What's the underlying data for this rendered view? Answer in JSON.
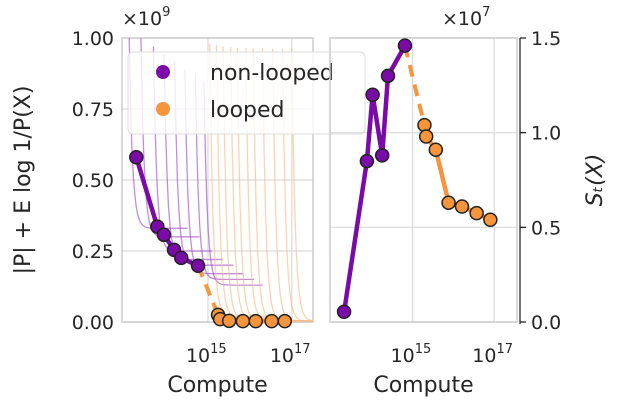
{
  "chart_data": [
    {
      "type": "line",
      "xlabel": "Compute",
      "ylabel": "|P| + E log 1/P(X)",
      "x_scale": "log",
      "xlim": [
        8900000000000.0,
        3.2e+17
      ],
      "ylim": [
        0,
        1.0
      ],
      "y_multiplier": "×10^9",
      "x_ticks": [
        "10^15",
        "10^17"
      ],
      "y_ticks": [
        "0.00",
        "0.25",
        "0.50",
        "0.75",
        "1.00"
      ],
      "grid": true,
      "legend": {
        "placement": "top",
        "entries": [
          "non-looped",
          "looped"
        ]
      },
      "series": [
        {
          "name": "non-looped",
          "color": "#7b0ba8",
          "style": "solid",
          "x": [
            19500000000000.0,
            62000000000000.0,
            89000000000000.0,
            155000000000000.0,
            230000000000000.0,
            580000000000000.0
          ],
          "y": [
            0.58,
            0.336,
            0.307,
            0.254,
            0.226,
            0.198
          ]
        },
        {
          "name": "looped",
          "color": "#f7953d",
          "style": "solid",
          "x": [
            1740000000000000.0,
            1950000000000000.0,
            3200000000000000.0,
            6800000000000000.0,
            1.38e+16,
            3.3e+16,
            6.8e+16
          ],
          "y": [
            0.025,
            0.01,
            0.004,
            0.003,
            0.003,
            0.003,
            0.003
          ]
        }
      ],
      "runs": {
        "non-looped_start": [
          13000000000000.0,
          25000000000000.0,
          50000000000000.0,
          90000000000000.0,
          160000000000000.0,
          280000000000000.0,
          500000000000000.0,
          800000000000000.0
        ],
        "non-looped_final": [
          0.33,
          0.3,
          0.25,
          0.22,
          0.2,
          0.17,
          0.15,
          0.13
        ],
        "looped_start": [
          1100000000000000.0,
          1600000000000000.0,
          2300000000000000.0,
          3500000000000000.0,
          5000000000000000.0,
          8000000000000000.0,
          1.2e+16,
          2e+16,
          3.5e+16,
          6e+16,
          1e+17
        ],
        "looped_final": [
          0.02,
          0.015,
          0.01,
          0.008,
          0.006,
          0.005,
          0.004,
          0.004,
          0.003,
          0.003,
          0.003
        ]
      }
    },
    {
      "type": "line",
      "xlabel": "Compute",
      "ylabel": "S_T(X)",
      "x_scale": "log",
      "xlim": [
        9500000000000.0,
        3.6e+17
      ],
      "ylim": [
        0,
        1.5
      ],
      "y_multiplier": "×10^7",
      "x_ticks": [
        "10^15",
        "10^17"
      ],
      "y_ticks": [
        "0.0",
        "0.5",
        "1.0",
        "1.5"
      ],
      "grid": true,
      "series": [
        {
          "name": "non-looped",
          "color": "#7b0ba8",
          "style": "solid",
          "x": [
            21000000000000.0,
            76000000000000.0,
            105000000000000.0,
            180000000000000.0,
            250000000000000.0,
            650000000000000.0
          ],
          "y": [
            0.054,
            0.85,
            1.2,
            0.88,
            1.3,
            1.46
          ]
        },
        {
          "name": "looped",
          "color": "#f7953d",
          "style": "solid",
          "x": [
            1950000000000000.0,
            2150000000000000.0,
            3700000000000000.0,
            7600000000000000.0,
            1.62e+16,
            3.7e+16,
            8e+16
          ],
          "y": [
            1.04,
            0.98,
            0.91,
            0.63,
            0.61,
            0.575,
            0.54
          ]
        }
      ]
    }
  ]
}
